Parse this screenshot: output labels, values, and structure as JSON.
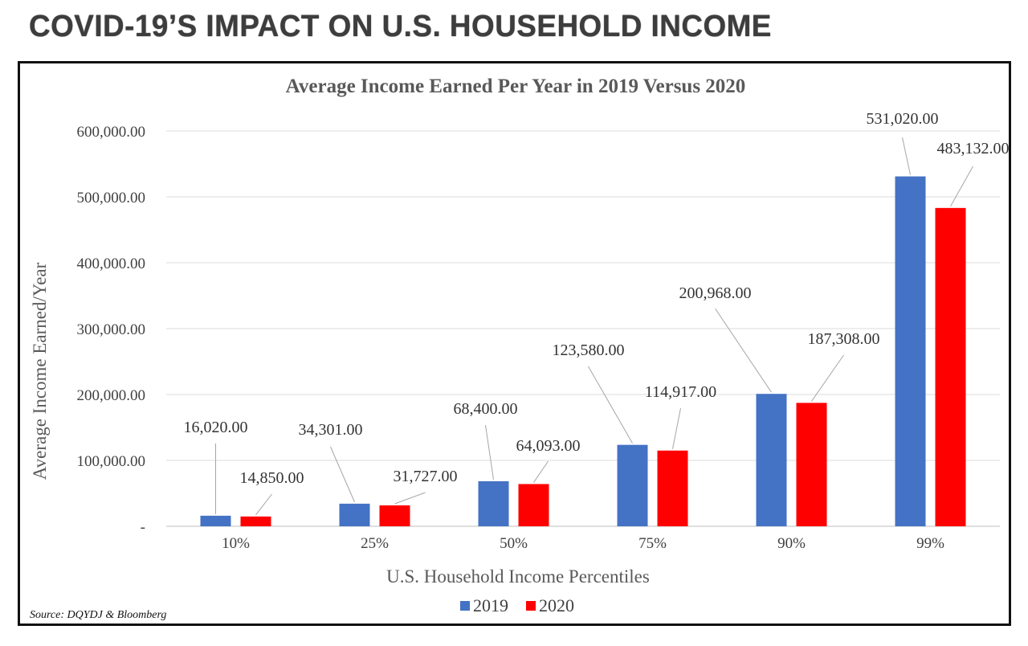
{
  "page_title": "COVID-19’S IMPACT ON U.S. HOUSEHOLD INCOME",
  "source": "Source: DQYDJ & Bloomberg",
  "chart_data": {
    "type": "bar",
    "title": "Average Income Earned Per Year in 2019 Versus 2020",
    "xlabel": "U.S. Household Income Percentiles",
    "ylabel": "Average Income Earned/Year",
    "categories": [
      "10%",
      "25%",
      "50%",
      "75%",
      "90%",
      "99%"
    ],
    "series": [
      {
        "name": "2019",
        "color": "#4472C4",
        "values": [
          16020,
          34301,
          68400,
          123580,
          200968,
          531020
        ],
        "labels": [
          "16,020.00",
          "34,301.00",
          "68,400.00",
          "123,580.00",
          "200,968.00",
          "531,020.00"
        ]
      },
      {
        "name": "2020",
        "color": "#FF0000",
        "values": [
          14850,
          31727,
          64093,
          114917,
          187308,
          483132
        ],
        "labels": [
          "14,850.00",
          "31,727.00",
          "64,093.00",
          "114,917.00",
          "187,308.00",
          "483,132.00"
        ]
      }
    ],
    "ylim": [
      0,
      600000
    ],
    "yticks": [
      0,
      100000,
      200000,
      300000,
      400000,
      500000,
      600000
    ],
    "ytick_labels": [
      "-",
      "100,000.00",
      "200,000.00",
      "300,000.00",
      "400,000.00",
      "500,000.00",
      "600,000.00"
    ],
    "grid": true,
    "legend_position": "bottom-center"
  }
}
